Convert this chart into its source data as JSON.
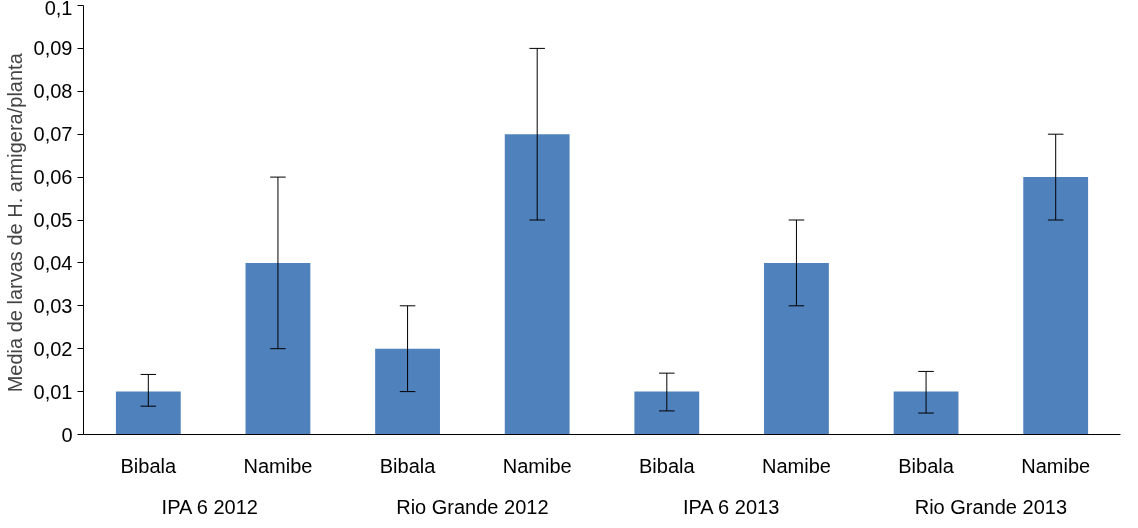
{
  "chart_data": {
    "type": "bar",
    "ylabel": "Media de larvas de  H. armigera/planta",
    "categories": [
      "Bibala",
      "Namibe",
      "Bibala",
      "Namibe",
      "Bibala",
      "Namibe",
      "Bibala",
      "Namibe"
    ],
    "values": [
      0.01,
      0.04,
      0.02,
      0.07,
      0.01,
      0.04,
      0.01,
      0.06
    ],
    "errors": [
      [
        0.0066,
        0.014
      ],
      [
        0.02,
        0.06
      ],
      [
        0.01,
        0.03
      ],
      [
        0.05,
        0.09
      ],
      [
        0.0055,
        0.0143
      ],
      [
        0.03,
        0.05
      ],
      [
        0.005,
        0.0147
      ],
      [
        0.05,
        0.07
      ]
    ],
    "color": "#4f81bd",
    "ylim": [
      0,
      0.1
    ],
    "yticks": [
      0,
      {
        "value": 0.01,
        "label": "0,01"
      },
      {
        "value": 0.02,
        "label": "0,02"
      },
      {
        "value": 0.03,
        "label": "0,03"
      },
      {
        "value": 0.04,
        "label": "0,04"
      },
      {
        "value": 0.05,
        "label": "0,05"
      },
      {
        "value": 0.06,
        "label": "0,06"
      },
      {
        "value": 0.07,
        "label": "0,07"
      },
      {
        "value": 0.08,
        "label": "0,08"
      },
      {
        "value": 0.09,
        "label": "0,09"
      },
      {
        "value": 0.1,
        "label": "0,1"
      }
    ],
    "annotations": [
      "IPA 6  2012",
      "Rio Grande 2012",
      "IPA 6 2013",
      "Rio Grande 2013"
    ],
    "grid": false
  }
}
